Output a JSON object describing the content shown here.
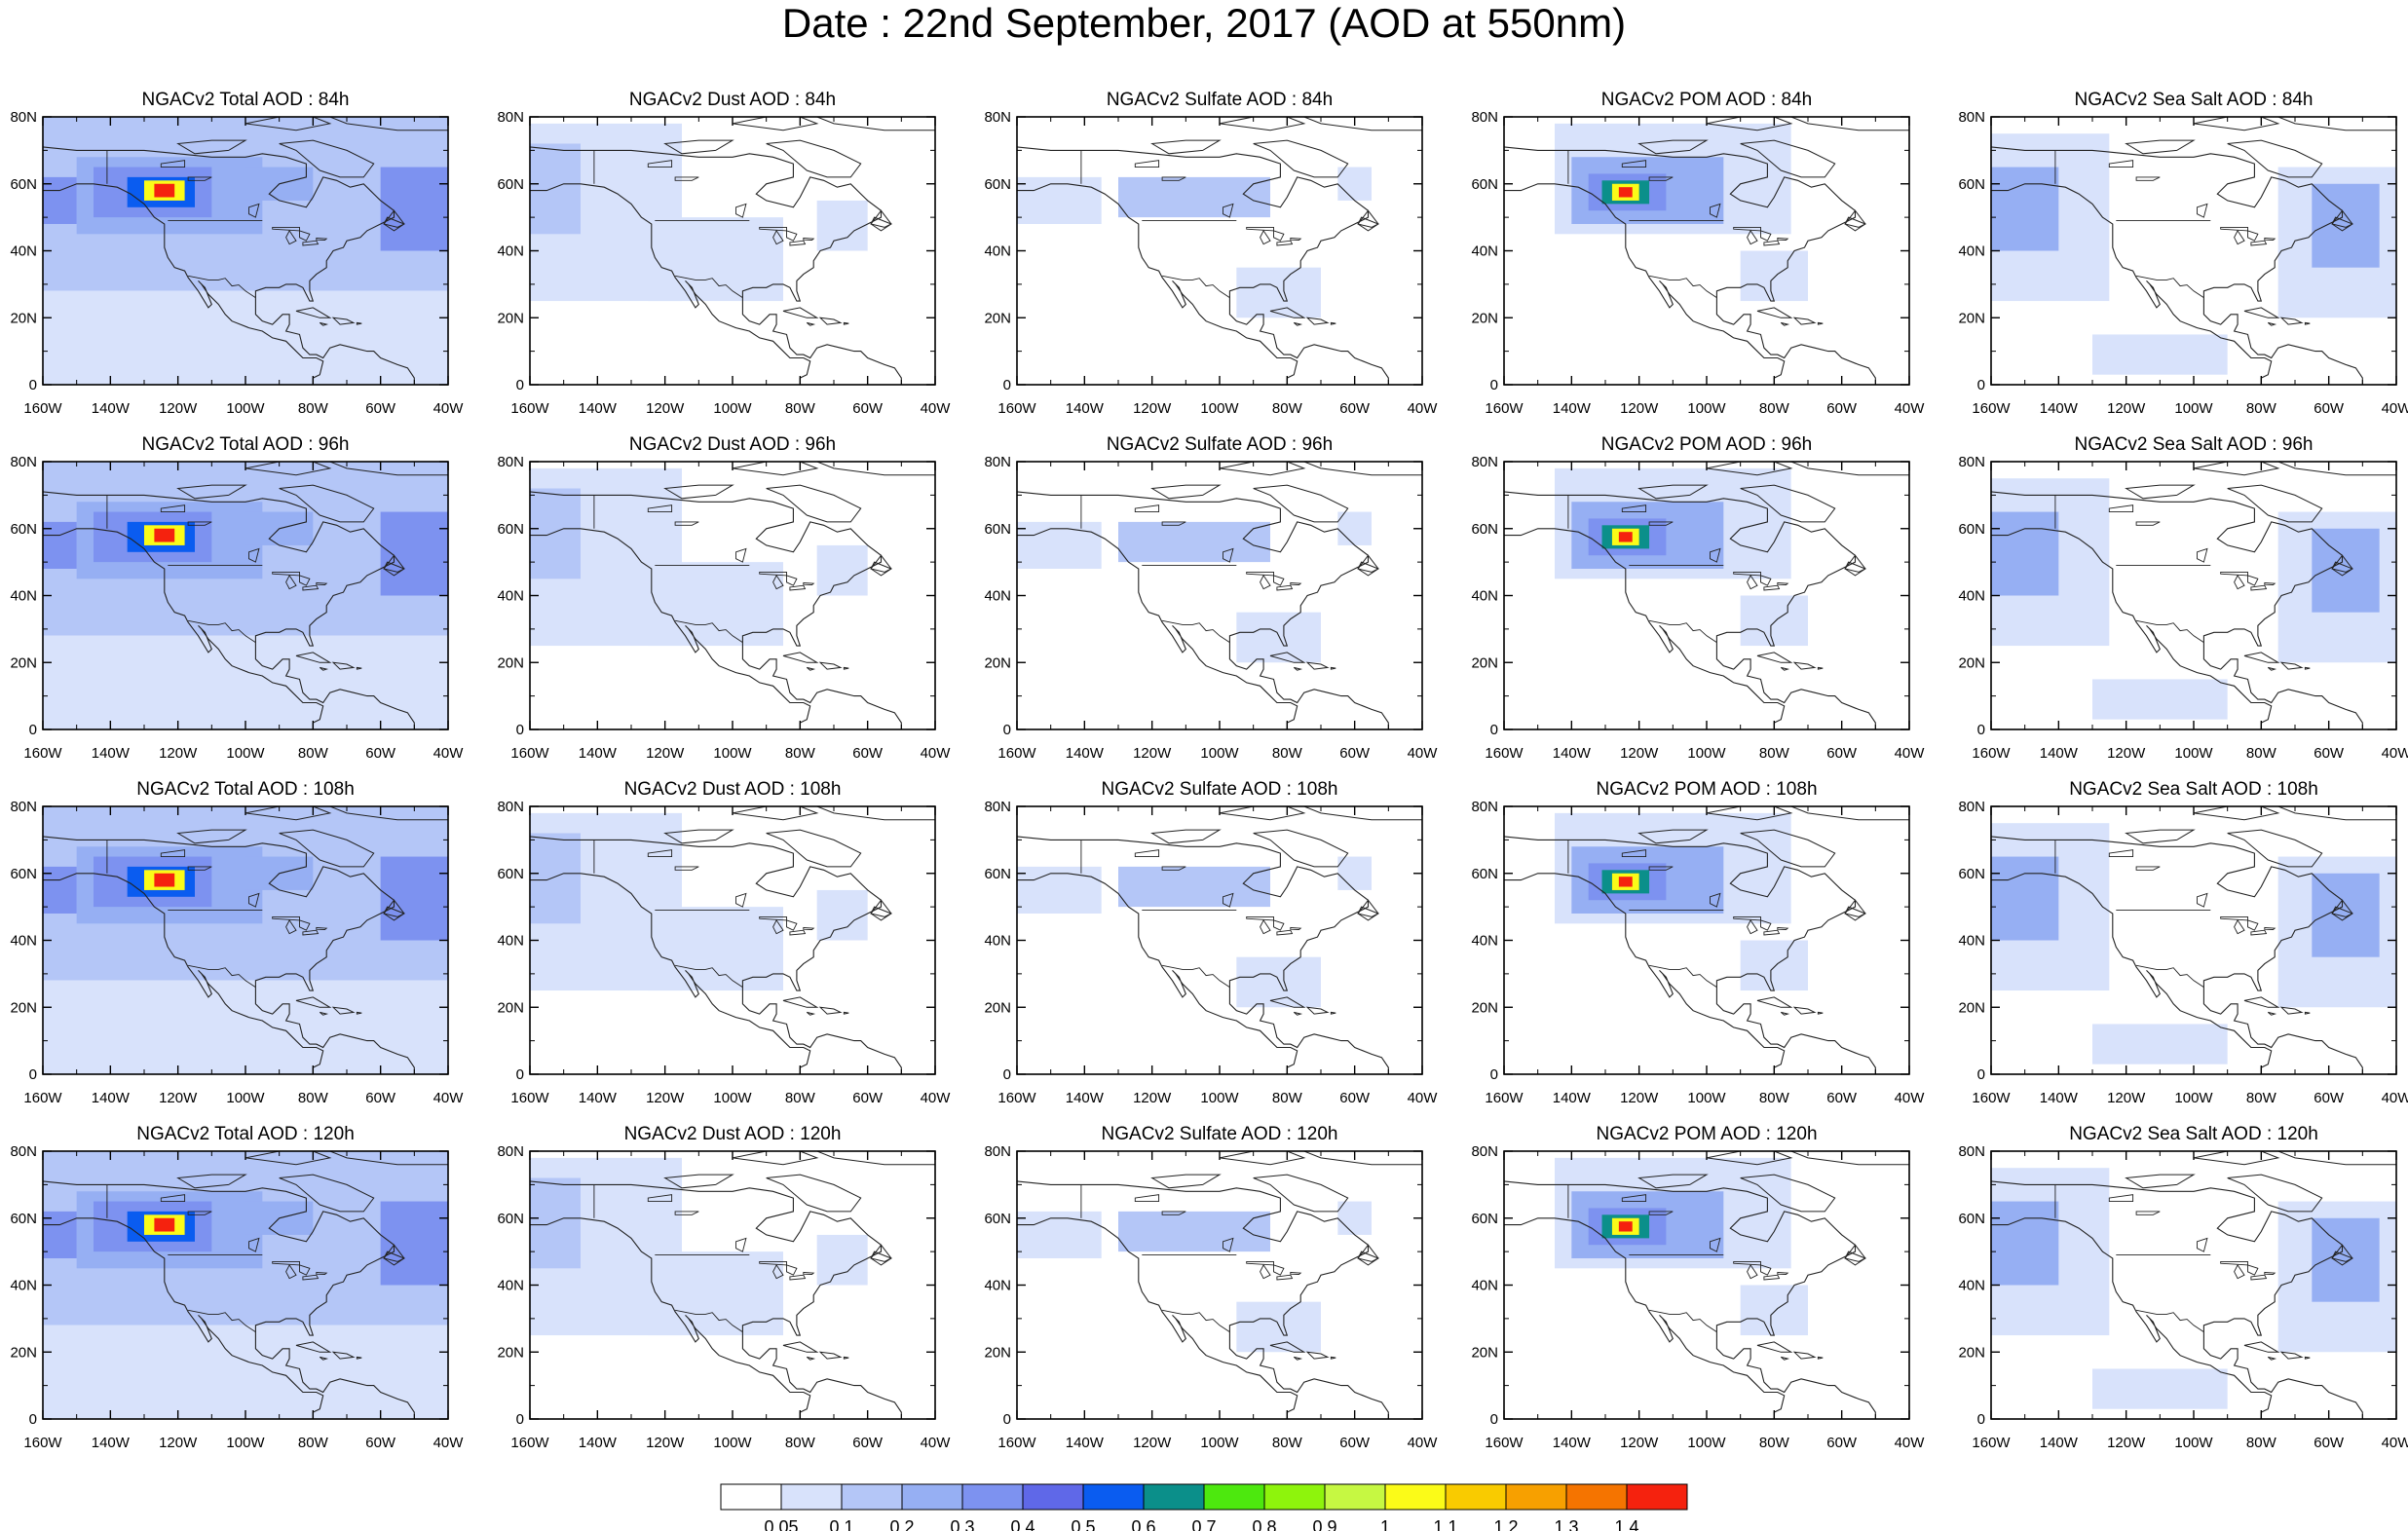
{
  "title": "Date : 22nd September, 2017 (AOD at 550nm)",
  "map": {
    "lon_range": [
      -160,
      -40
    ],
    "lat_range": [
      0,
      80
    ],
    "lon_tick_labels": [
      "160W",
      "140W",
      "120W",
      "100W",
      "80W",
      "60W",
      "40W"
    ],
    "lat_tick_labels": [
      "0",
      "20N",
      "40N",
      "60N",
      "80N"
    ]
  },
  "rows": [
    {
      "forecast_hour": "84h",
      "panels": [
        {
          "id": "total",
          "title": "NGACv2 Total AOD : 84h"
        },
        {
          "id": "dust",
          "title": "NGACv2 Dust AOD : 84h"
        },
        {
          "id": "sulfate",
          "title": "NGACv2 Sulfate AOD : 84h"
        },
        {
          "id": "pom",
          "title": "NGACv2 POM AOD : 84h"
        },
        {
          "id": "seasalt",
          "title": "NGACv2 Sea Salt AOD : 84h"
        }
      ]
    },
    {
      "forecast_hour": "96h",
      "panels": [
        {
          "id": "total",
          "title": "NGACv2 Total AOD : 96h"
        },
        {
          "id": "dust",
          "title": "NGACv2 Dust AOD : 96h"
        },
        {
          "id": "sulfate",
          "title": "NGACv2 Sulfate AOD : 96h"
        },
        {
          "id": "pom",
          "title": "NGACv2 POM AOD : 96h"
        },
        {
          "id": "seasalt",
          "title": "NGACv2 Sea Salt AOD : 96h"
        }
      ]
    },
    {
      "forecast_hour": "108h",
      "panels": [
        {
          "id": "total",
          "title": "NGACv2 Total AOD : 108h"
        },
        {
          "id": "dust",
          "title": "NGACv2 Dust AOD : 108h"
        },
        {
          "id": "sulfate",
          "title": "NGACv2 Sulfate AOD : 108h"
        },
        {
          "id": "pom",
          "title": "NGACv2 POM AOD : 108h"
        },
        {
          "id": "seasalt",
          "title": "NGACv2 Sea Salt AOD : 108h"
        }
      ]
    },
    {
      "forecast_hour": "120h",
      "panels": [
        {
          "id": "total",
          "title": "NGACv2 Total AOD : 120h"
        },
        {
          "id": "dust",
          "title": "NGACv2 Dust AOD : 120h"
        },
        {
          "id": "sulfate",
          "title": "NGACv2 Sulfate AOD : 120h"
        },
        {
          "id": "pom",
          "title": "NGACv2 POM AOD : 120h"
        },
        {
          "id": "seasalt",
          "title": "NGACv2 Sea Salt  AOD : 120h"
        }
      ]
    }
  ],
  "colorbar": {
    "labels": [
      "0.05",
      "0.1",
      "0.2",
      "0.3",
      "0.4",
      "0.5",
      "0.6",
      "0.7",
      "0.8",
      "0.9",
      "1",
      "1.1",
      "1.2",
      "1.3",
      "1.4"
    ],
    "colors": [
      "#ffffff",
      "#d8e2fb",
      "#b4c6f7",
      "#96aff3",
      "#7d92f0",
      "#5f68e8",
      "#0a5cf0",
      "#0b8f8a",
      "#4de80e",
      "#8ef40c",
      "#c6f842",
      "#fbfb18",
      "#f9cb00",
      "#f7a000",
      "#f57400",
      "#f5220e"
    ]
  },
  "overlays": {
    "total": [
      {
        "lon": [
          -160,
          -40
        ],
        "lat": [
          28,
          80
        ],
        "level": 2
      },
      {
        "lon": [
          -160,
          -40
        ],
        "lat": [
          0,
          28
        ],
        "level": 1
      },
      {
        "lon": [
          -150,
          -95
        ],
        "lat": [
          45,
          68
        ],
        "level": 3
      },
      {
        "lon": [
          -145,
          -110
        ],
        "lat": [
          50,
          65
        ],
        "level": 4
      },
      {
        "lon": [
          -135,
          -115
        ],
        "lat": [
          53,
          62
        ],
        "level": 6
      },
      {
        "lon": [
          -130,
          -118
        ],
        "lat": [
          55,
          61
        ],
        "level": 11
      },
      {
        "lon": [
          -127,
          -121
        ],
        "lat": [
          56,
          60
        ],
        "level": 15
      },
      {
        "lon": [
          -100,
          -80
        ],
        "lat": [
          55,
          65
        ],
        "level": 3
      },
      {
        "lon": [
          -160,
          -150
        ],
        "lat": [
          48,
          62
        ],
        "level": 4
      },
      {
        "lon": [
          -60,
          -40
        ],
        "lat": [
          40,
          65
        ],
        "level": 4
      }
    ],
    "dust": [
      {
        "lon": [
          -160,
          -115
        ],
        "lat": [
          25,
          78
        ],
        "level": 1
      },
      {
        "lon": [
          -160,
          -145
        ],
        "lat": [
          45,
          72
        ],
        "level": 2
      },
      {
        "lon": [
          -125,
          -85
        ],
        "lat": [
          25,
          50
        ],
        "level": 1
      },
      {
        "lon": [
          -75,
          -60
        ],
        "lat": [
          40,
          55
        ],
        "level": 1
      }
    ],
    "sulfate": [
      {
        "lon": [
          -160,
          -135
        ],
        "lat": [
          48,
          62
        ],
        "level": 1
      },
      {
        "lon": [
          -130,
          -85
        ],
        "lat": [
          50,
          62
        ],
        "level": 2
      },
      {
        "lon": [
          -95,
          -70
        ],
        "lat": [
          20,
          35
        ],
        "level": 1
      },
      {
        "lon": [
          -65,
          -55
        ],
        "lat": [
          55,
          65
        ],
        "level": 1
      }
    ],
    "pom": [
      {
        "lon": [
          -145,
          -75
        ],
        "lat": [
          45,
          78
        ],
        "level": 1
      },
      {
        "lon": [
          -140,
          -95
        ],
        "lat": [
          48,
          68
        ],
        "level": 3
      },
      {
        "lon": [
          -135,
          -112
        ],
        "lat": [
          52,
          63
        ],
        "level": 4
      },
      {
        "lon": [
          -131,
          -117
        ],
        "lat": [
          54,
          61
        ],
        "level": 7
      },
      {
        "lon": [
          -128,
          -120
        ],
        "lat": [
          55,
          60
        ],
        "level": 11
      },
      {
        "lon": [
          -126,
          -122
        ],
        "lat": [
          56,
          59
        ],
        "level": 15
      },
      {
        "lon": [
          -90,
          -70
        ],
        "lat": [
          25,
          40
        ],
        "level": 1
      }
    ],
    "seasalt": [
      {
        "lon": [
          -160,
          -125
        ],
        "lat": [
          25,
          75
        ],
        "level": 1
      },
      {
        "lon": [
          -160,
          -140
        ],
        "lat": [
          40,
          65
        ],
        "level": 3
      },
      {
        "lon": [
          -75,
          -40
        ],
        "lat": [
          20,
          65
        ],
        "level": 1
      },
      {
        "lon": [
          -65,
          -45
        ],
        "lat": [
          35,
          60
        ],
        "level": 3
      },
      {
        "lon": [
          -130,
          -90
        ],
        "lat": [
          3,
          15
        ],
        "level": 1
      }
    ]
  },
  "land_outline": [
    [
      -165,
      68
    ],
    [
      -160,
      71
    ],
    [
      -150,
      70
    ],
    [
      -140,
      70
    ],
    [
      -130,
      70
    ],
    [
      -120,
      69
    ],
    [
      -110,
      68
    ],
    [
      -100,
      68
    ],
    [
      -95,
      69
    ],
    [
      -88,
      68
    ],
    [
      -82,
      66
    ],
    [
      -82,
      62
    ],
    [
      -90,
      60
    ],
    [
      -93,
      57
    ],
    [
      -90,
      55
    ],
    [
      -82,
      53
    ],
    [
      -80,
      56
    ],
    [
      -78,
      60
    ],
    [
      -77,
      62
    ],
    [
      -73,
      61
    ],
    [
      -69,
      59
    ],
    [
      -65,
      60
    ],
    [
      -62,
      57
    ],
    [
      -60,
      55
    ],
    [
      -56,
      52
    ],
    [
      -56,
      50
    ],
    [
      -60,
      48
    ],
    [
      -64,
      46
    ],
    [
      -66,
      44
    ],
    [
      -70,
      43
    ],
    [
      -71,
      41
    ],
    [
      -74,
      40
    ],
    [
      -76,
      37
    ],
    [
      -76,
      35
    ],
    [
      -79,
      33
    ],
    [
      -81,
      31
    ],
    [
      -81,
      28
    ],
    [
      -80,
      25
    ],
    [
      -81,
      25
    ],
    [
      -82,
      27
    ],
    [
      -83,
      29
    ],
    [
      -85,
      30
    ],
    [
      -88,
      30
    ],
    [
      -90,
      29
    ],
    [
      -94,
      29
    ],
    [
      -97,
      28
    ],
    [
      -97,
      24
    ],
    [
      -97,
      21
    ],
    [
      -95,
      19
    ],
    [
      -92,
      18
    ],
    [
      -91,
      19
    ],
    [
      -89,
      21
    ],
    [
      -87,
      21
    ],
    [
      -87,
      18
    ],
    [
      -88,
      16
    ],
    [
      -84,
      15
    ],
    [
      -83,
      11
    ],
    [
      -81,
      9
    ],
    [
      -79,
      9
    ],
    [
      -77,
      8
    ],
    [
      -75,
      11
    ],
    [
      -72,
      12
    ],
    [
      -68,
      11
    ],
    [
      -64,
      10
    ],
    [
      -62,
      10
    ],
    [
      -60,
      8
    ],
    [
      -55,
      6
    ],
    [
      -52,
      5
    ],
    [
      -50,
      2
    ],
    [
      -50,
      0
    ],
    [
      -80,
      0
    ],
    [
      -80,
      2
    ],
    [
      -78,
      3
    ],
    [
      -77,
      7
    ],
    [
      -79,
      8
    ],
    [
      -83,
      8
    ],
    [
      -86,
      11
    ],
    [
      -88,
      13
    ],
    [
      -92,
      14
    ],
    [
      -95,
      16
    ],
    [
      -99,
      17
    ],
    [
      -104,
      19
    ],
    [
      -106,
      21
    ],
    [
      -108,
      24
    ],
    [
      -111,
      27
    ],
    [
      -113,
      30
    ],
    [
      -114,
      31
    ],
    [
      -112,
      29
    ],
    [
      -110,
      24
    ],
    [
      -111,
      23
    ],
    [
      -114,
      28
    ],
    [
      -117,
      32
    ],
    [
      -118,
      34
    ],
    [
      -121,
      35
    ],
    [
      -123,
      38
    ],
    [
      -124,
      41
    ],
    [
      -124,
      45
    ],
    [
      -124,
      48
    ],
    [
      -127,
      50
    ],
    [
      -130,
      54
    ],
    [
      -134,
      57
    ],
    [
      -138,
      59
    ],
    [
      -145,
      60
    ],
    [
      -150,
      60
    ],
    [
      -155,
      58
    ],
    [
      -160,
      58
    ],
    [
      -165,
      60
    ],
    [
      -165,
      68
    ]
  ],
  "border_lines": [
    [
      [
        -123,
        49
      ],
      [
        -95,
        49
      ]
    ],
    [
      [
        -141,
        60
      ],
      [
        -141,
        70
      ]
    ],
    [
      [
        -117,
        32.5
      ],
      [
        -111,
        31.3
      ],
      [
        -108,
        31.3
      ],
      [
        -106,
        31.8
      ],
      [
        -104,
        29.5
      ],
      [
        -102,
        29.8
      ],
      [
        -100,
        28
      ],
      [
        -97,
        26
      ]
    ]
  ],
  "islands": [
    [
      [
        -85,
        22
      ],
      [
        -80,
        23
      ],
      [
        -75,
        20
      ],
      [
        -78,
        20
      ],
      [
        -85,
        22
      ]
    ],
    [
      [
        -74,
        20
      ],
      [
        -70,
        19.5
      ],
      [
        -68,
        18.5
      ],
      [
        -72,
        18
      ],
      [
        -74,
        20
      ]
    ],
    [
      [
        -78,
        18.5
      ],
      [
        -76,
        18
      ],
      [
        -77,
        17.7
      ],
      [
        -78,
        18.5
      ]
    ],
    [
      [
        -67,
        18.5
      ],
      [
        -65.6,
        18.3
      ],
      [
        -67,
        18
      ],
      [
        -67,
        18.5
      ]
    ],
    [
      [
        -56,
        52
      ],
      [
        -53,
        48
      ],
      [
        -55,
        47
      ],
      [
        -59,
        48
      ],
      [
        -56,
        52
      ]
    ],
    [
      [
        -90,
        72
      ],
      [
        -80,
        73
      ],
      [
        -70,
        70
      ],
      [
        -62,
        66
      ],
      [
        -65,
        62
      ],
      [
        -72,
        62
      ],
      [
        -78,
        64
      ],
      [
        -85,
        70
      ],
      [
        -90,
        72
      ]
    ],
    [
      [
        -120,
        72
      ],
      [
        -110,
        73
      ],
      [
        -100,
        73
      ],
      [
        -105,
        70
      ],
      [
        -115,
        69
      ],
      [
        -120,
        72
      ]
    ],
    [
      [
        -100,
        78
      ],
      [
        -90,
        80
      ],
      [
        -80,
        80
      ],
      [
        -75,
        78
      ],
      [
        -85,
        76
      ],
      [
        -100,
        78
      ]
    ],
    [
      [
        -75,
        80
      ],
      [
        -60,
        82
      ],
      [
        -45,
        82
      ],
      [
        -40,
        80
      ],
      [
        -40,
        76
      ],
      [
        -55,
        76
      ],
      [
        -70,
        78
      ],
      [
        -75,
        80
      ]
    ],
    [
      [
        -58,
        50
      ],
      [
        -53,
        48
      ],
      [
        -56,
        46
      ],
      [
        -59,
        48
      ],
      [
        -58,
        50
      ]
    ]
  ],
  "lakes": [
    [
      [
        -92,
        47
      ],
      [
        -84,
        47
      ],
      [
        -84,
        46
      ],
      [
        -92,
        46.5
      ],
      [
        -92,
        47
      ]
    ],
    [
      [
        -87,
        46
      ],
      [
        -85,
        43
      ],
      [
        -87,
        42
      ],
      [
        -88,
        44
      ],
      [
        -87,
        46
      ]
    ],
    [
      [
        -84,
        46
      ],
      [
        -81,
        45
      ],
      [
        -82,
        43
      ],
      [
        -84,
        44
      ],
      [
        -84,
        46
      ]
    ],
    [
      [
        -83,
        42.5
      ],
      [
        -79,
        43
      ],
      [
        -78.5,
        42
      ],
      [
        -83,
        41.6
      ],
      [
        -83,
        42.5
      ]
    ],
    [
      [
        -79,
        43.8
      ],
      [
        -76,
        43.6
      ],
      [
        -76.5,
        43.2
      ],
      [
        -79,
        43.3
      ],
      [
        -79,
        43.8
      ]
    ],
    [
      [
        -99,
        53
      ],
      [
        -96,
        54
      ],
      [
        -97,
        50
      ],
      [
        -99,
        51
      ],
      [
        -99,
        53
      ]
    ],
    [
      [
        -125,
        66
      ],
      [
        -118,
        67
      ],
      [
        -118,
        65
      ],
      [
        -125,
        65
      ],
      [
        -125,
        66
      ]
    ],
    [
      [
        -117,
        62
      ],
      [
        -110,
        62
      ],
      [
        -112,
        61
      ],
      [
        -117,
        61
      ],
      [
        -117,
        62
      ]
    ]
  ]
}
